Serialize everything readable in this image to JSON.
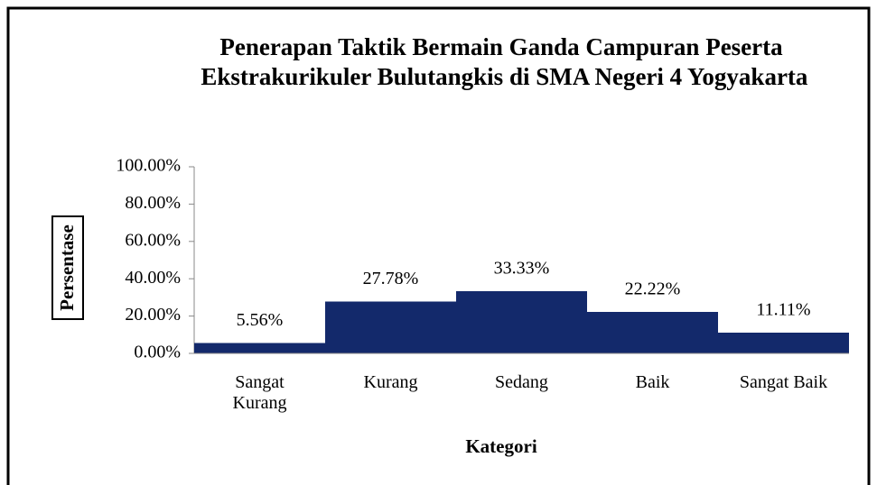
{
  "chart_data": {
    "type": "bar",
    "title": "Penerapan Taktik Bermain Ganda Campuran Peserta Ekstrakurikuler Bulutangkis di SMA Negeri 4 Yogyakarta",
    "x_label": "Kategori",
    "y_label": "Persentase",
    "categories": [
      "Sangat Kurang",
      "Kurang",
      "Sedang",
      "Baik",
      "Sangat Baik"
    ],
    "values": [
      5.56,
      27.78,
      33.33,
      22.22,
      11.11
    ],
    "value_labels": [
      "5.56%",
      "27.78%",
      "33.33%",
      "22.22%",
      "11.11%"
    ],
    "color": "#13296b",
    "ylim": [
      0,
      100
    ],
    "yticks": [
      {
        "value": 0,
        "label": "0.00%"
      },
      {
        "value": 20,
        "label": "20.00%"
      },
      {
        "value": 40,
        "label": "40.00%"
      },
      {
        "value": 60,
        "label": "60.00%"
      },
      {
        "value": 80,
        "label": "80.00%"
      },
      {
        "value": 100,
        "label": "100.00%"
      }
    ],
    "grid": false
  }
}
